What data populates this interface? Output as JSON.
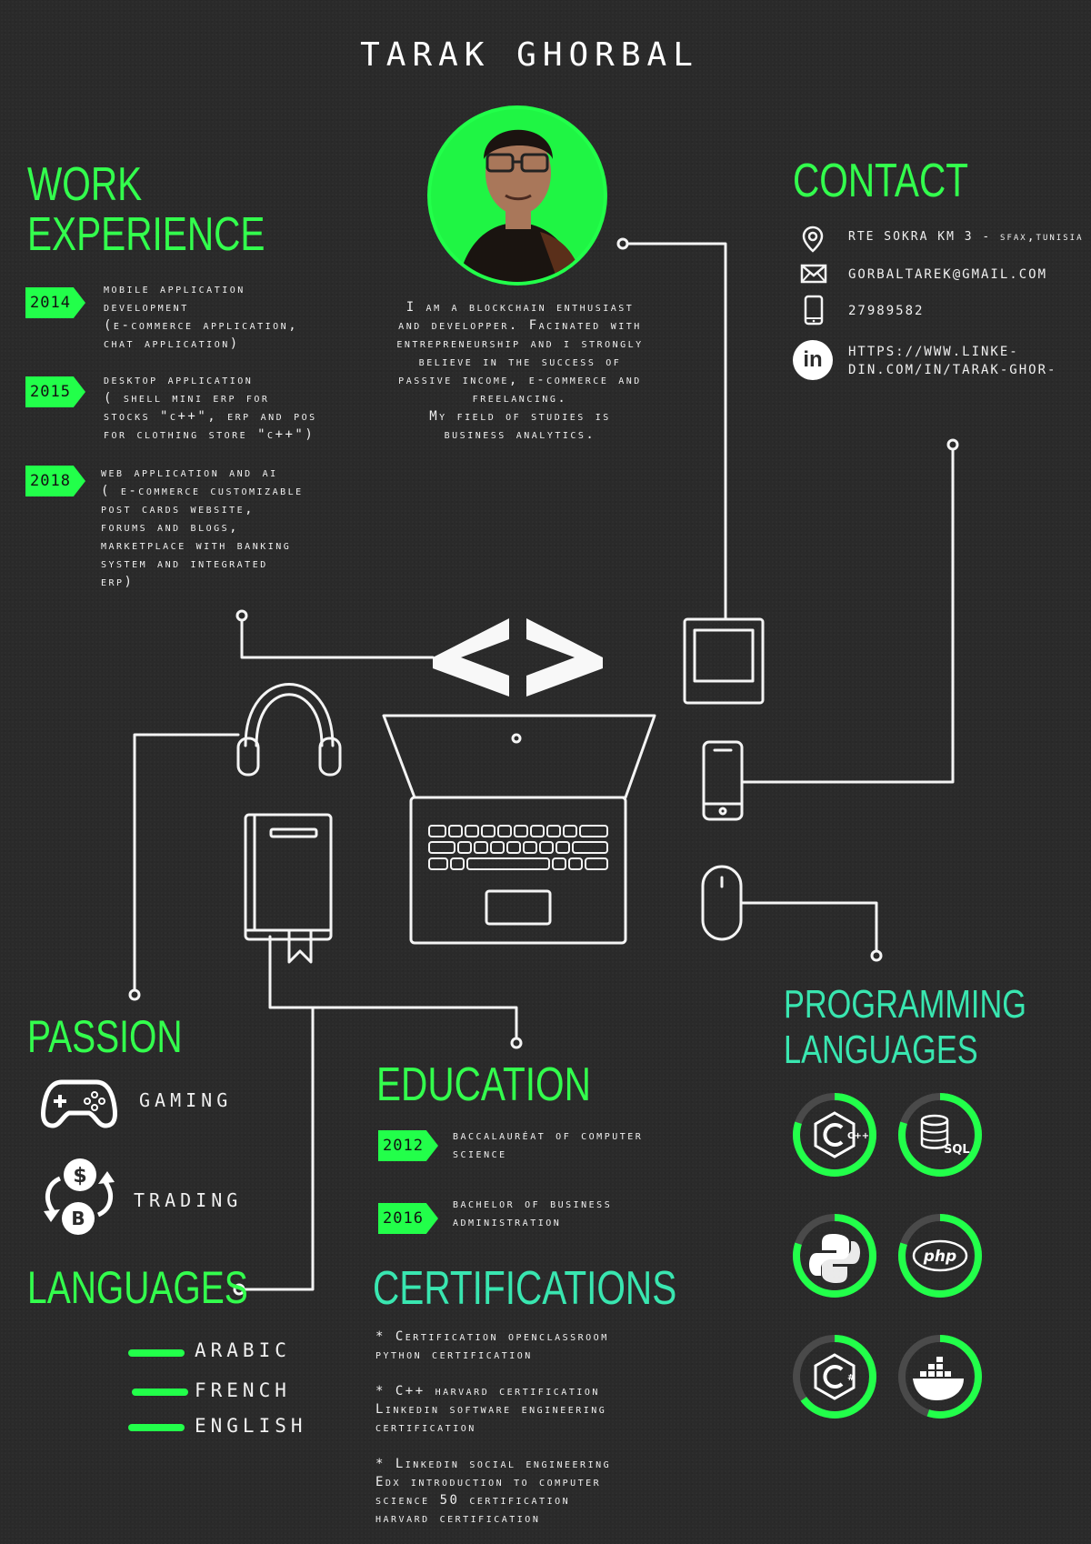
{
  "name": "TARAK GHORBAL",
  "sections": {
    "work": "WORK\nEXPERIENCE",
    "contact": "CONTACT",
    "passion": "PASSION",
    "education": "EDUCATION",
    "languages": "LANGUAGES",
    "certifications": "CERTIFICATIONS",
    "programming": "PROGRAMMING\nLANGUAGES"
  },
  "work": [
    {
      "year": "2014",
      "text": "Mobile application\ndevelopment\n(e-commerce application,\nchat application)"
    },
    {
      "year": "2015",
      "text": "Desktop application\n( Shell mini ERP for\nstocks \"c++\", ERP and POS\nfor clothing store \"C++\")"
    },
    {
      "year": "2018",
      "text": "web application and AI\n( e-commerce customizable\npost cards website,\nforums and blogs,\nmarketplace with banking\nsystem and integrated\nERP)"
    }
  ],
  "bio": "I am a blockchain enthusiast\nand developper. Facinated with\nentrepreneurship and i strongly\nbelieve in the success of\npassive income, e-commerce and\nfreelancing.\nMy field of studies is\nbusiness analytics.",
  "contact": {
    "address": "RTE SOKRA KM 3 - sfax,tunisia",
    "email": "GORBALTAREK@GMAIL.COM",
    "phone": "27989582",
    "linkedin": "HTTPS://WWW.LINKE-\nDIN.COM/IN/TARAK-GHOR-"
  },
  "passion": [
    "GAMING",
    "TRADING"
  ],
  "education": [
    {
      "year": "2012",
      "text": "baccalauréat of computer\nscience"
    },
    {
      "year": "2016",
      "text": "Bachelor of business\nadministration"
    }
  ],
  "languages": [
    "ARABIC",
    "FRENCH",
    "ENGLISH"
  ],
  "certifications": [
    "* Certification openclassroom\npython certification",
    "* C++ harvard certification\nLinkedin software engineering\ncertification",
    "* Linkedin social engineering\nEdx introduction to computer\nscience 50 certification\nharvard certification"
  ],
  "programming": [
    {
      "icon": "cpp-icon",
      "level": 0.8,
      "label": "C++"
    },
    {
      "icon": "sql-icon",
      "level": 0.8,
      "label": "SQL"
    },
    {
      "icon": "python-icon",
      "level": 0.8
    },
    {
      "icon": "php-icon",
      "level": 0.8,
      "label": "php"
    },
    {
      "icon": "csharp-icon",
      "level": 0.65,
      "label": "#"
    },
    {
      "icon": "docker-icon",
      "level": 0.55
    }
  ],
  "colors": {
    "accent": "#22ff4a",
    "teal": "#39e6b0",
    "background": "#2a2a2a"
  }
}
